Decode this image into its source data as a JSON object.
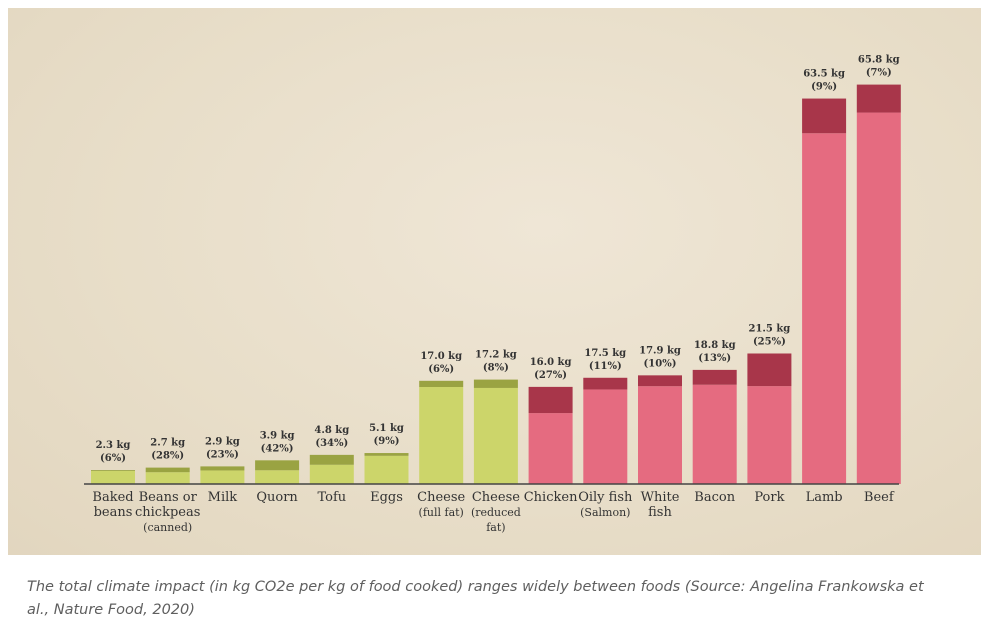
{
  "caption": "The total climate impact (in kg CO2e per kg of food cooked) ranges widely between foods (Source: Angelina Frankowska et al., Nature Food, 2020)",
  "colors": {
    "plant_base": "#ccd56a",
    "plant_top": "#9aa342",
    "animal_base": "#e56b80",
    "animal_top": "#a8364a",
    "axis": "#444444",
    "text": "#333333"
  },
  "chart_data": {
    "type": "bar",
    "stacked": true,
    "title": "",
    "xlabel": "",
    "ylabel": "",
    "ylim": [
      0,
      70
    ],
    "grid": false,
    "categories": [
      [
        "Baked",
        "beans"
      ],
      [
        "Beans or",
        "chickpeas",
        "(canned)"
      ],
      [
        "Milk"
      ],
      [
        "Quorn"
      ],
      [
        "Tofu"
      ],
      [
        "Eggs"
      ],
      [
        "Cheese",
        "(full fat)"
      ],
      [
        "Cheese",
        "(reduced",
        "fat)"
      ],
      [
        "Chicken"
      ],
      [
        "Oily fish",
        "(Salmon)"
      ],
      [
        "White",
        "fish"
      ],
      [
        "Bacon"
      ],
      [
        "Pork"
      ],
      [
        "Lamb"
      ],
      [
        "Beef"
      ]
    ],
    "totals": [
      2.3,
      2.7,
      2.9,
      3.9,
      4.8,
      5.1,
      17.0,
      17.2,
      16.0,
      17.5,
      17.9,
      18.8,
      21.5,
      63.5,
      65.8
    ],
    "top_share_percent": [
      6,
      28,
      23,
      42,
      34,
      9,
      6,
      8,
      27,
      11,
      10,
      13,
      25,
      9,
      7
    ],
    "value_labels": [
      "2.3 kg",
      "2.7 kg",
      "2.9 kg",
      "3.9 kg",
      "4.8 kg",
      "5.1 kg",
      "17.0 kg",
      "17.2 kg",
      "16.0 kg",
      "17.5 kg",
      "17.9 kg",
      "18.8 kg",
      "21.5 kg",
      "63.5 kg",
      "65.8 kg"
    ],
    "pct_labels": [
      "(6%)",
      "(28%)",
      "(23%)",
      "(42%)",
      "(34%)",
      "(9%)",
      "(6%)",
      "(8%)",
      "(27%)",
      "(11%)",
      "(10%)",
      "(13%)",
      "(25%)",
      "(9%)",
      "(7%)"
    ],
    "group": [
      "plant",
      "plant",
      "plant",
      "plant",
      "plant",
      "plant",
      "plant",
      "plant",
      "animal",
      "animal",
      "animal",
      "animal",
      "animal",
      "animal",
      "animal"
    ]
  }
}
